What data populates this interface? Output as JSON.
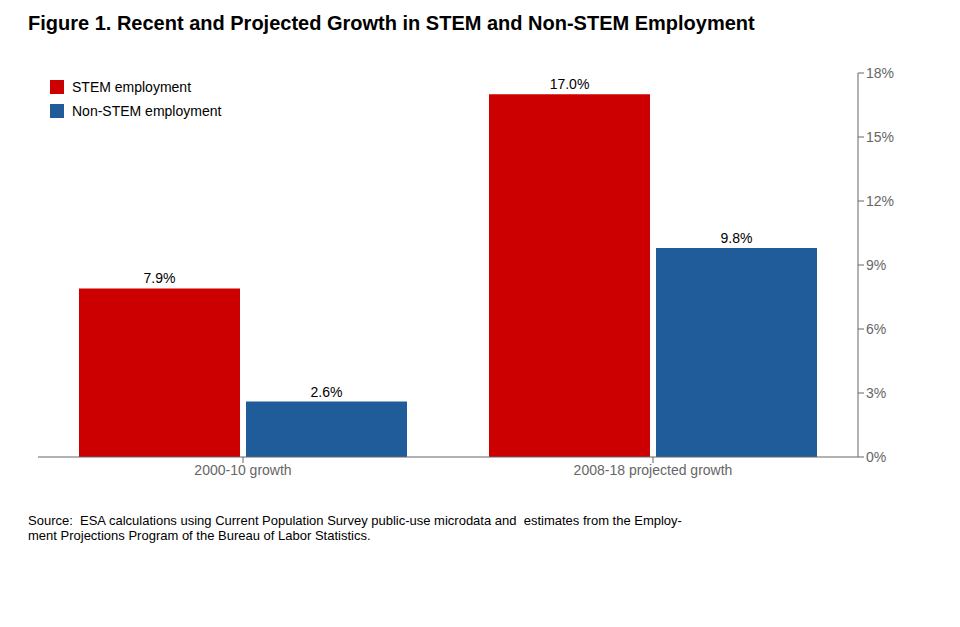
{
  "chart_data": {
    "type": "bar",
    "title": "Figure 1. Recent and Projected Growth in STEM and Non-STEM Employment",
    "categories": [
      "2000-10 growth",
      "2008-18 projected growth"
    ],
    "series": [
      {
        "name": "STEM employment",
        "color": "#CC0000",
        "values": [
          7.9,
          17.0
        ],
        "value_labels": [
          "7.9%",
          "17.0%"
        ]
      },
      {
        "name": "Non-STEM employment",
        "color": "#1F5C99",
        "values": [
          2.6,
          9.8
        ],
        "value_labels": [
          "2.6%",
          "9.8%"
        ]
      }
    ],
    "ylim": [
      0,
      18
    ],
    "yticks": [
      {
        "value": 0,
        "label": "0%"
      },
      {
        "value": 3,
        "label": "3%"
      },
      {
        "value": 6,
        "label": "6%"
      },
      {
        "value": 9,
        "label": "9%"
      },
      {
        "value": 12,
        "label": "12%"
      },
      {
        "value": 15,
        "label": "15%"
      },
      {
        "value": 18,
        "label": "18%"
      }
    ],
    "data_labels": true,
    "grid": false,
    "legend": "upper left",
    "annotations": [
      "Source:  ESA calculations using Current Population Survey public-use microdata and  estimates from the Employ-\nment Projections Program of the Bureau of Labor Statistics."
    ]
  }
}
